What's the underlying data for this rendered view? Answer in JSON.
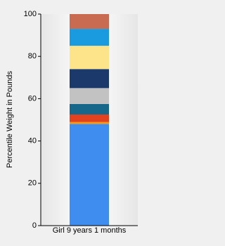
{
  "chart_data": {
    "type": "stacked_bar",
    "y_label": "Percentile Weight in Pounds",
    "categories": [
      "Girl 9 years 1 months"
    ],
    "series": [
      {
        "color": "#3f8def",
        "values": [
          48
        ]
      },
      {
        "color": "#f39a1e",
        "values": [
          1
        ]
      },
      {
        "color": "#e2421d",
        "values": [
          3.5
        ]
      },
      {
        "color": "#16678a",
        "values": [
          5
        ]
      },
      {
        "color": "#c2c2c2",
        "values": [
          7.5
        ]
      },
      {
        "color": "#1b3a6b",
        "values": [
          9
        ]
      },
      {
        "color": "#fde48b",
        "values": [
          11
        ]
      },
      {
        "color": "#1a9be0",
        "values": [
          8
        ]
      },
      {
        "color": "#c86b50",
        "values": [
          7
        ]
      }
    ],
    "ylim": [
      0,
      100
    ],
    "yticks": [
      0,
      20,
      40,
      60,
      80,
      100
    ]
  }
}
